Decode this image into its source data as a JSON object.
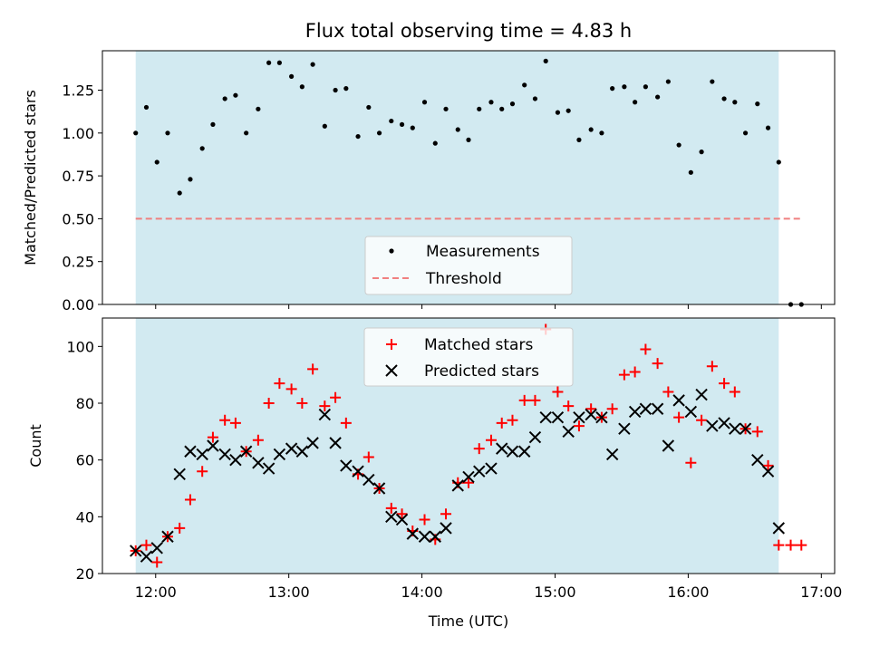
{
  "chart_data": [
    {
      "type": "scatter",
      "title": "Flux total observing time = 4.83 h",
      "xlabel": "",
      "ylabel": "Matched/Predicted stars",
      "xlim": [
        11.6,
        17.1
      ],
      "ylim": [
        0,
        1.48
      ],
      "yticks": [
        0.0,
        0.25,
        0.5,
        0.75,
        1.0,
        1.25
      ],
      "ytick_labels": [
        "0.00",
        "0.25",
        "0.50",
        "0.75",
        "1.00",
        "1.25"
      ],
      "shaded_span": [
        11.85,
        16.68
      ],
      "shade_color": "#add8e6",
      "threshold": {
        "y": 0.5,
        "x_range": [
          11.85,
          16.85
        ],
        "color": "#f08080"
      },
      "legend": {
        "placement": "lower-center",
        "entries": [
          "Measurements",
          "Threshold"
        ]
      },
      "series": [
        {
          "name": "Measurements",
          "color": "#000000",
          "x": [
            11.85,
            11.93,
            12.01,
            12.09,
            12.18,
            12.26,
            12.35,
            12.43,
            12.52,
            12.6,
            12.68,
            12.77,
            12.85,
            12.93,
            13.02,
            13.1,
            13.18,
            13.27,
            13.35,
            13.43,
            13.52,
            13.6,
            13.68,
            13.77,
            13.85,
            13.93,
            14.02,
            14.1,
            14.18,
            14.27,
            14.35,
            14.43,
            14.52,
            14.6,
            14.68,
            14.77,
            14.85,
            14.93,
            15.02,
            15.1,
            15.18,
            15.27,
            15.35,
            15.43,
            15.52,
            15.6,
            15.68,
            15.77,
            15.85,
            15.93,
            16.02,
            16.1,
            16.18,
            16.27,
            16.35,
            16.43,
            16.52,
            16.6,
            16.68,
            16.77,
            16.85
          ],
          "values": [
            1.0,
            1.15,
            0.83,
            1.0,
            0.65,
            0.73,
            0.91,
            1.05,
            1.2,
            1.22,
            1.0,
            1.14,
            1.41,
            1.41,
            1.33,
            1.27,
            1.4,
            1.04,
            1.25,
            1.26,
            0.98,
            1.15,
            1.0,
            1.07,
            1.05,
            1.03,
            1.18,
            0.94,
            1.14,
            1.02,
            0.96,
            1.14,
            1.18,
            1.14,
            1.17,
            1.28,
            1.2,
            1.42,
            1.12,
            1.13,
            0.96,
            1.02,
            1.0,
            1.26,
            1.27,
            1.18,
            1.27,
            1.21,
            1.3,
            0.93,
            0.77,
            0.89,
            1.3,
            1.2,
            1.18,
            1.0,
            1.17,
            1.03,
            0.83,
            0.0,
            0.0
          ]
        }
      ]
    },
    {
      "type": "scatter",
      "title": "",
      "xlabel": "Time (UTC)",
      "ylabel": "Count",
      "xlim": [
        11.6,
        17.1
      ],
      "ylim": [
        20,
        110
      ],
      "xticks": [
        12,
        13,
        14,
        15,
        16,
        17
      ],
      "xtick_labels": [
        "12:00",
        "13:00",
        "14:00",
        "15:00",
        "16:00",
        "17:00"
      ],
      "yticks": [
        20,
        40,
        60,
        80,
        100
      ],
      "ytick_labels": [
        "20",
        "40",
        "60",
        "80",
        "100"
      ],
      "shaded_span": [
        11.85,
        16.68
      ],
      "shade_color": "#add8e6",
      "legend": {
        "placement": "top-center",
        "entries": [
          "Matched stars",
          "Predicted stars"
        ]
      },
      "series": [
        {
          "name": "Matched stars",
          "marker": "plus",
          "color": "#ff0000",
          "x": [
            11.85,
            11.93,
            12.01,
            12.09,
            12.18,
            12.26,
            12.35,
            12.43,
            12.52,
            12.6,
            12.68,
            12.77,
            12.85,
            12.93,
            13.02,
            13.1,
            13.18,
            13.27,
            13.35,
            13.43,
            13.52,
            13.6,
            13.68,
            13.77,
            13.85,
            13.93,
            14.02,
            14.1,
            14.18,
            14.27,
            14.35,
            14.43,
            14.52,
            14.6,
            14.68,
            14.77,
            14.85,
            14.93,
            15.02,
            15.1,
            15.18,
            15.27,
            15.35,
            15.43,
            15.52,
            15.6,
            15.68,
            15.77,
            15.85,
            15.93,
            16.02,
            16.1,
            16.18,
            16.27,
            16.35,
            16.43,
            16.52,
            16.6,
            16.68,
            16.77,
            16.85
          ],
          "values": [
            28,
            30,
            24,
            33,
            36,
            46,
            56,
            68,
            74,
            73,
            63,
            67,
            80,
            87,
            85,
            80,
            92,
            79,
            82,
            73,
            55,
            61,
            50,
            43,
            41,
            35,
            39,
            32,
            41,
            52,
            52,
            64,
            67,
            73,
            74,
            81,
            81,
            106,
            84,
            79,
            72,
            78,
            75,
            78,
            90,
            91,
            99,
            94,
            84,
            75,
            59,
            74,
            93,
            87,
            84,
            71,
            70,
            58,
            30,
            30,
            30
          ]
        },
        {
          "name": "Predicted stars",
          "marker": "x",
          "color": "#000000",
          "x": [
            11.85,
            11.93,
            12.01,
            12.09,
            12.18,
            12.26,
            12.35,
            12.43,
            12.52,
            12.6,
            12.68,
            12.77,
            12.85,
            12.93,
            13.02,
            13.1,
            13.18,
            13.27,
            13.35,
            13.43,
            13.52,
            13.6,
            13.68,
            13.77,
            13.85,
            13.93,
            14.02,
            14.1,
            14.18,
            14.27,
            14.35,
            14.43,
            14.52,
            14.6,
            14.68,
            14.77,
            14.85,
            14.93,
            15.02,
            15.1,
            15.18,
            15.27,
            15.35,
            15.43,
            15.52,
            15.6,
            15.68,
            15.77,
            15.85,
            15.93,
            16.02,
            16.1,
            16.18,
            16.27,
            16.35,
            16.43,
            16.52,
            16.6,
            16.68
          ],
          "values": [
            28,
            26,
            29,
            33,
            55,
            63,
            62,
            65,
            62,
            60,
            63,
            59,
            57,
            62,
            64,
            63,
            66,
            76,
            66,
            58,
            56,
            53,
            50,
            40,
            39,
            34,
            33,
            33,
            36,
            51,
            54,
            56,
            57,
            64,
            63,
            63,
            68,
            75,
            75,
            70,
            75,
            76,
            75,
            62,
            71,
            77,
            78,
            78,
            65,
            81,
            77,
            83,
            72,
            73,
            71,
            71,
            60,
            56,
            36
          ]
        }
      ]
    }
  ]
}
